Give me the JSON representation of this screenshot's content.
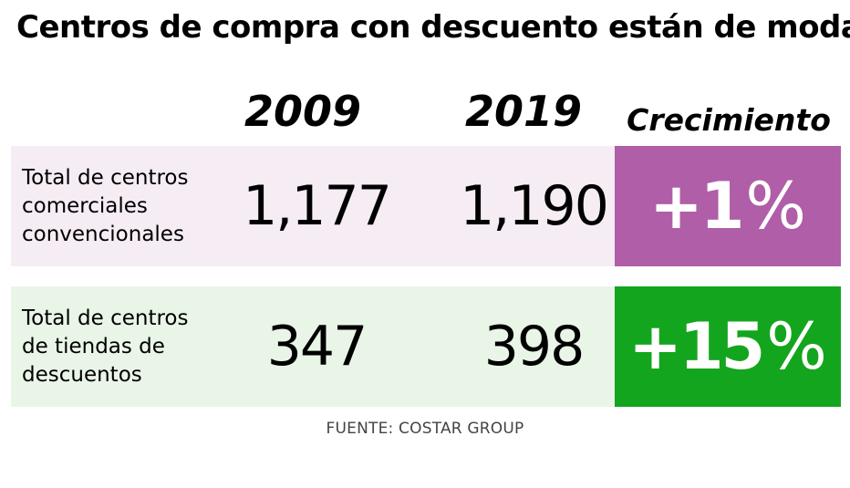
{
  "chart_data": {
    "type": "table",
    "title": "Centros de compra con descuento están de moda",
    "columns": [
      "2009",
      "2019",
      "Crecimiento"
    ],
    "rows": [
      {
        "label": "Total de centros\ncomerciales\nconvencionales",
        "values": [
          "1,177",
          "1,190"
        ],
        "growth_number": "+1",
        "growth_symbol": "%",
        "row_color": "#f5ecf4",
        "growth_color": "#b05ea7"
      },
      {
        "label": "Total de centros\nde tiendas de\ndescuentos",
        "values": [
          "347",
          "398"
        ],
        "growth_number": "+15",
        "growth_symbol": "%",
        "row_color": "#e9f5e7",
        "growth_color": "#14a51e"
      }
    ],
    "source": "FUENTE: COSTAR GROUP"
  }
}
